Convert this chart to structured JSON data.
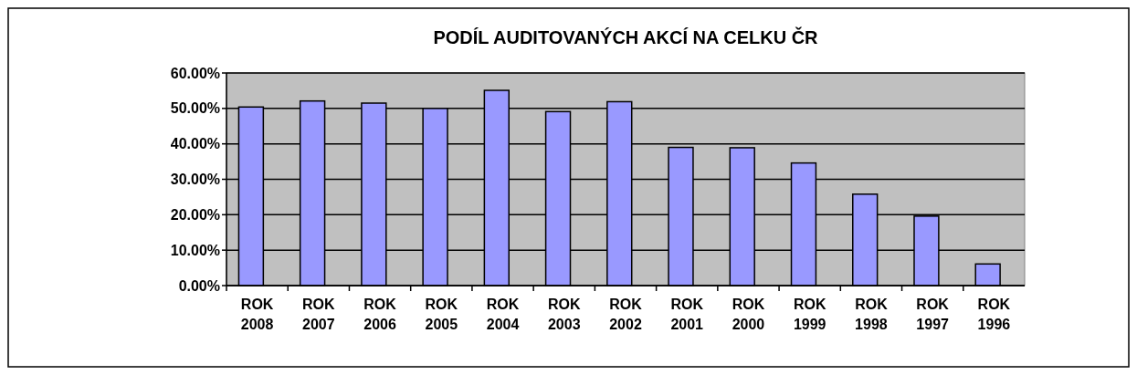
{
  "chart_data": {
    "type": "bar",
    "title": "PODÍL AUDITOVANÝCH AKCÍ NA CELKU ČR",
    "categories": [
      "ROK 2008",
      "ROK 2007",
      "ROK 2006",
      "ROK 2005",
      "ROK 2004",
      "ROK 2003",
      "ROK 2002",
      "ROK 2001",
      "ROK 2000",
      "ROK 1999",
      "ROK 1998",
      "ROK 1997",
      "ROK 1996"
    ],
    "values": [
      50.4,
      52.1,
      51.5,
      50.0,
      55.1,
      49.1,
      51.9,
      39.0,
      38.9,
      34.6,
      25.8,
      19.6,
      6.1
    ],
    "color": "#9999ff",
    "ylim": [
      0,
      60
    ],
    "yticks": [
      {
        "value": 0,
        "label": "0.00%"
      },
      {
        "value": 10,
        "label": "10.00%"
      },
      {
        "value": 20,
        "label": "20.00%"
      },
      {
        "value": 30,
        "label": "30.00%"
      },
      {
        "value": 40,
        "label": "40.00%"
      },
      {
        "value": 50,
        "label": "50.00%"
      },
      {
        "value": 60,
        "label": "60.00%"
      }
    ],
    "grid": "y"
  }
}
